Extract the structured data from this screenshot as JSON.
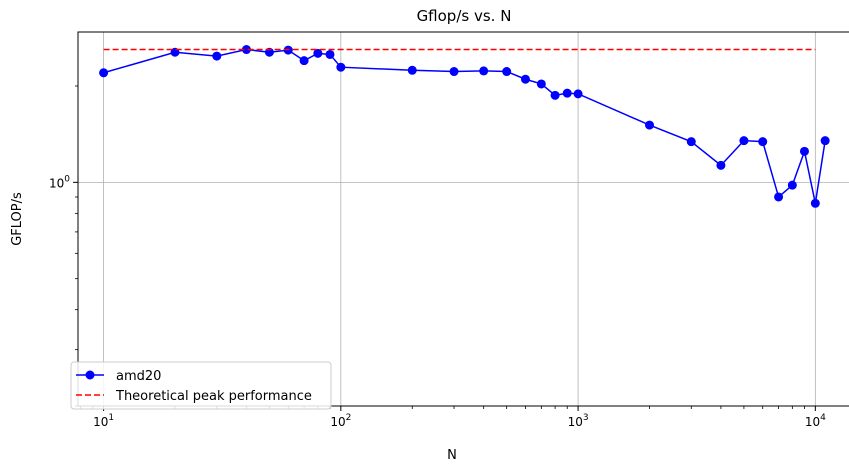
{
  "chart_data": {
    "type": "line",
    "title": "Gflop/s vs. N",
    "xlabel": "N",
    "ylabel": "GFLOP/s",
    "xscale": "log",
    "yscale": "log",
    "xlim": [
      7.8,
      14000
    ],
    "ylim": [
      0.2,
      2.95
    ],
    "grid": true,
    "legend_position": "lower-left",
    "x_ticks": [
      {
        "value": 10,
        "base": "10",
        "exp": "1"
      },
      {
        "value": 100,
        "base": "10",
        "exp": "2"
      },
      {
        "value": 1000,
        "base": "10",
        "exp": "3"
      },
      {
        "value": 10000,
        "base": "10",
        "exp": "4"
      }
    ],
    "y_ticks": [
      {
        "value": 1,
        "base": "10",
        "exp": "0"
      }
    ],
    "series": [
      {
        "name": "amd20",
        "color": "#0000ff",
        "style": "solid-marker",
        "x": [
          10,
          20,
          30,
          40,
          50,
          60,
          70,
          80,
          90,
          100,
          200,
          300,
          400,
          500,
          600,
          700,
          800,
          900,
          1000,
          2000,
          3000,
          4000,
          5000,
          6000,
          7000,
          8000,
          9000,
          10000,
          11000
        ],
        "y": [
          2.2,
          2.55,
          2.48,
          2.6,
          2.55,
          2.59,
          2.4,
          2.53,
          2.51,
          2.29,
          2.24,
          2.22,
          2.23,
          2.22,
          2.1,
          2.03,
          1.87,
          1.9,
          1.89,
          1.51,
          1.34,
          1.13,
          1.35,
          1.34,
          0.9,
          0.98,
          1.25,
          0.86,
          1.35
        ]
      },
      {
        "name": "Theoretical peak performance",
        "color": "#ff0000",
        "style": "dashed",
        "x": [
          10,
          10000
        ],
        "y": [
          2.6,
          2.6
        ]
      }
    ]
  }
}
